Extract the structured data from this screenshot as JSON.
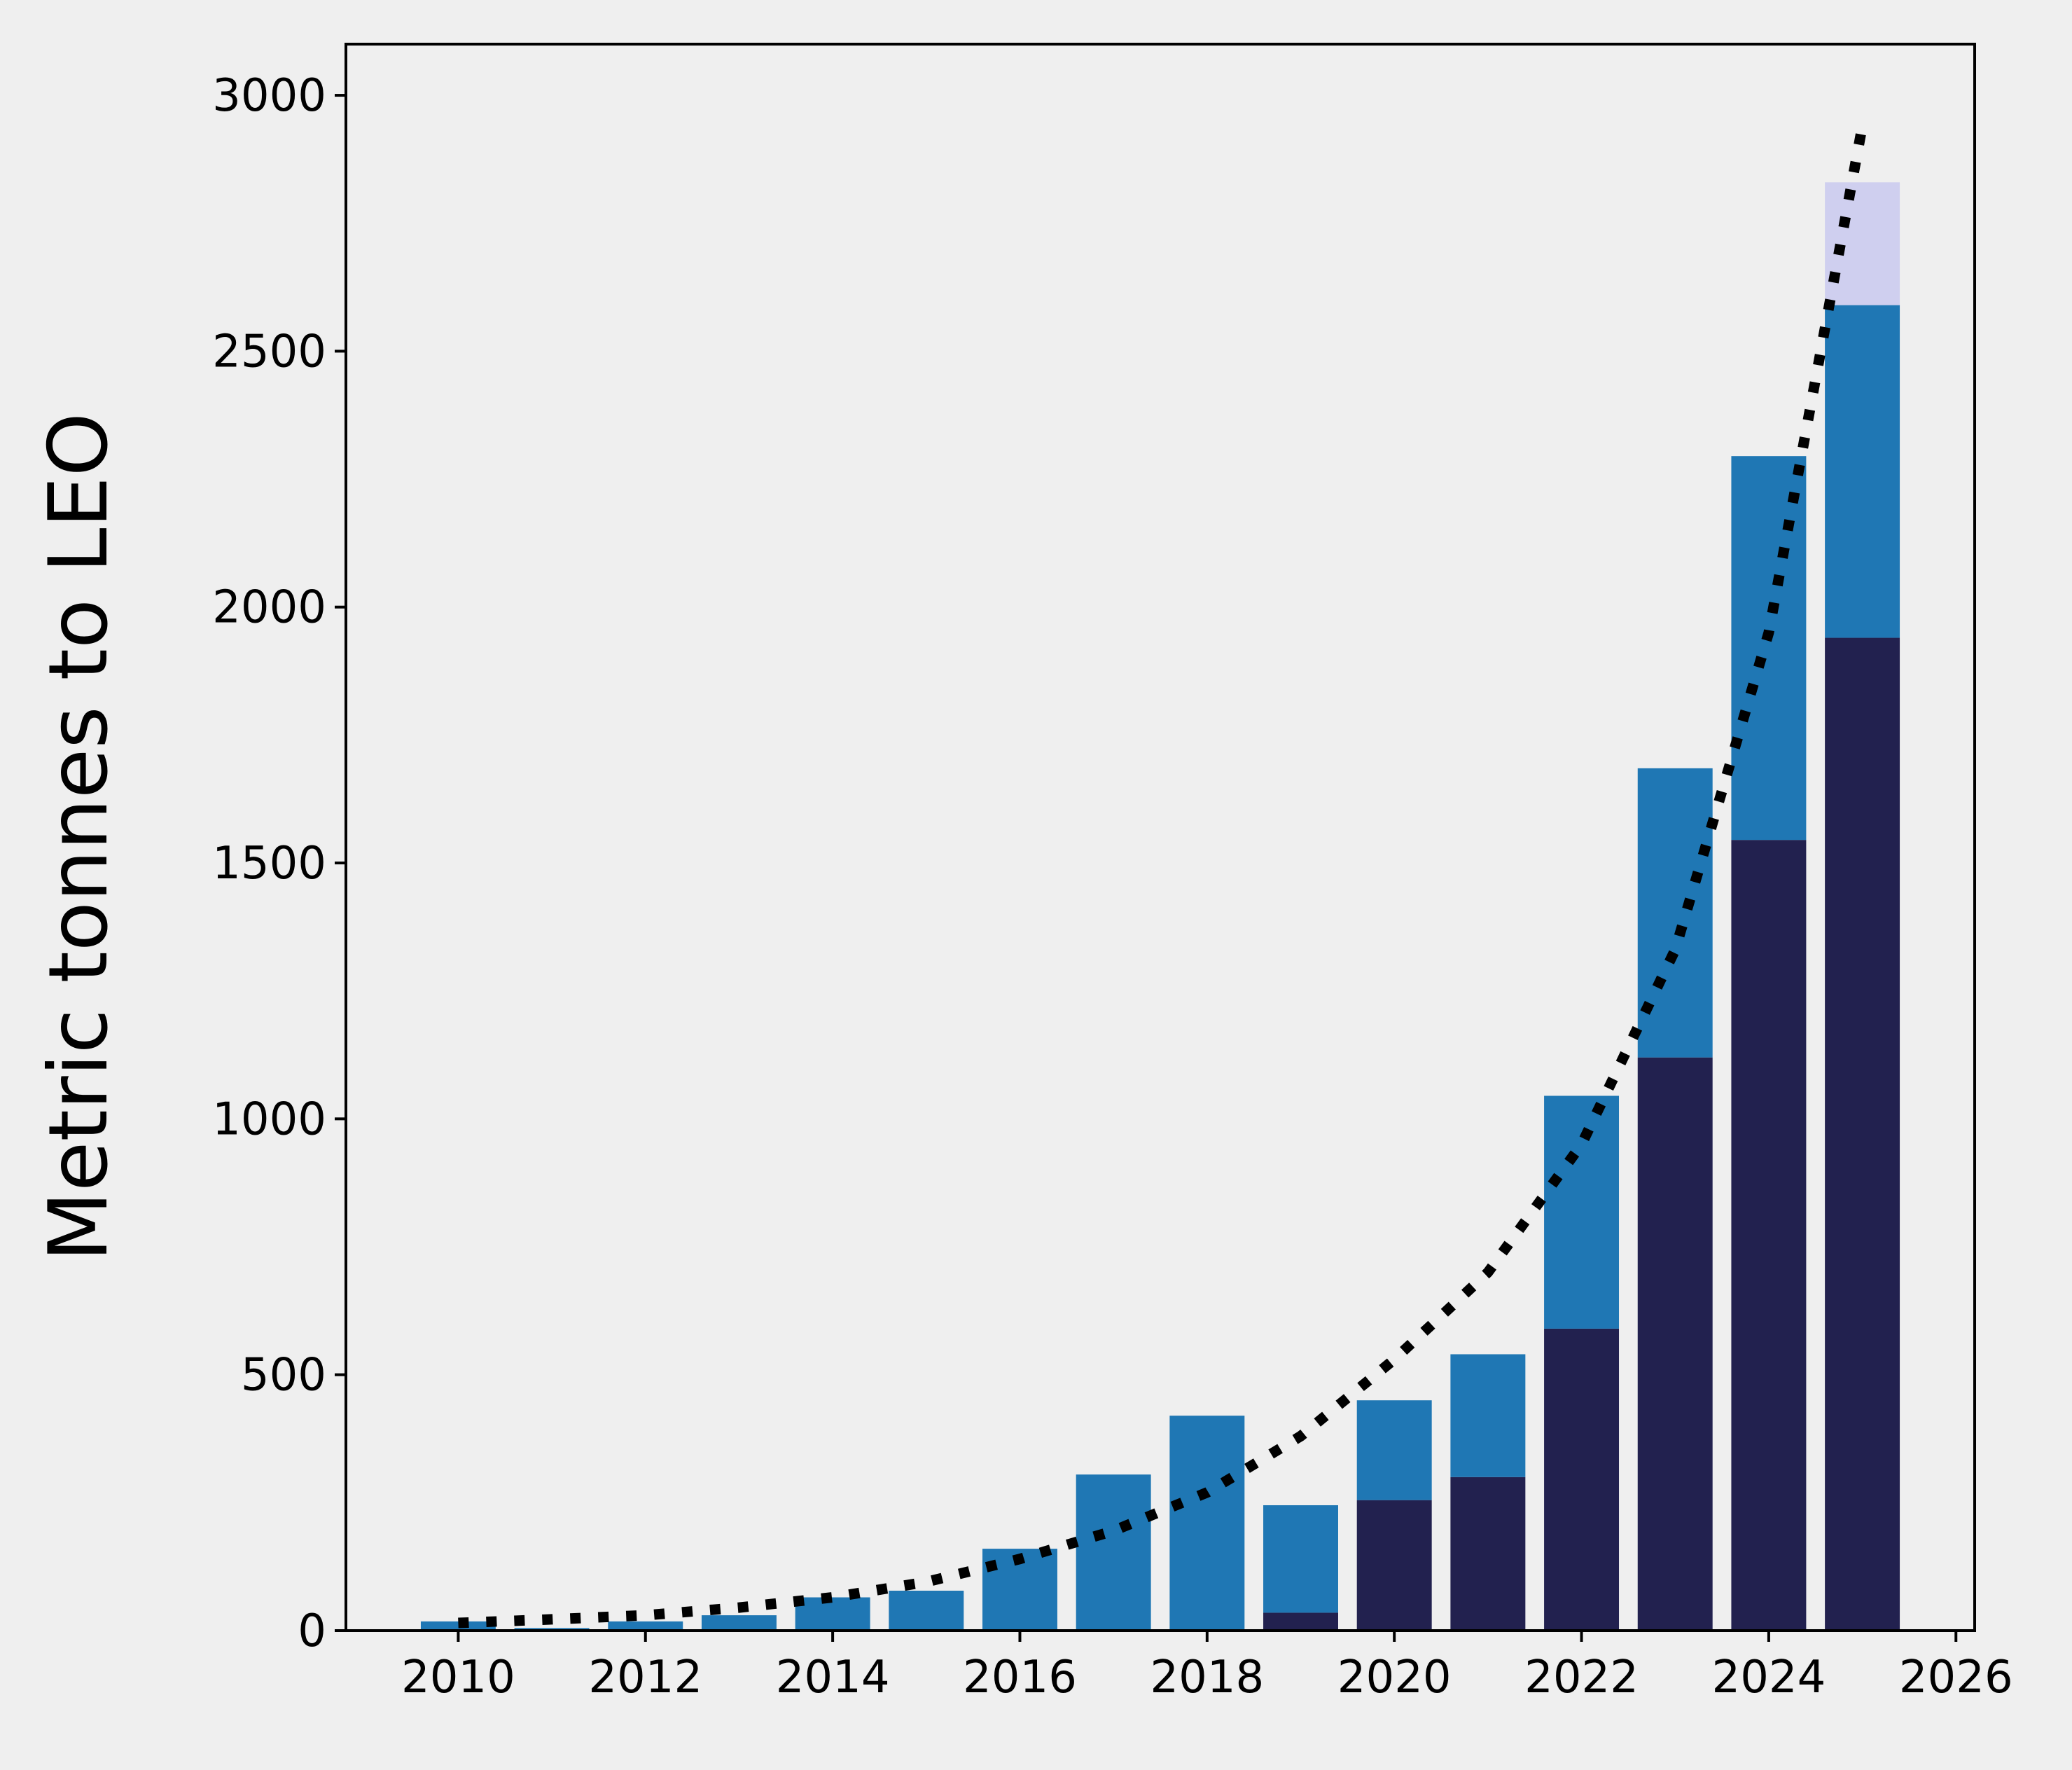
{
  "chart_data": {
    "type": "bar",
    "stacked": true,
    "title": "",
    "xlabel": "",
    "ylabel": "Metric tonnes to LEO",
    "xlim": [
      2008.8,
      2026.2
    ],
    "ylim": [
      0,
      3100
    ],
    "xticks": [
      2010,
      2012,
      2014,
      2016,
      2018,
      2020,
      2022,
      2024,
      2026
    ],
    "yticks": [
      0,
      500,
      1000,
      1500,
      2000,
      2500,
      3000
    ],
    "grid": false,
    "legend": "none",
    "categories": [
      2010,
      2011,
      2012,
      2013,
      2014,
      2015,
      2016,
      2017,
      2018,
      2019,
      2020,
      2021,
      2022,
      2023,
      2024,
      2025
    ],
    "series": [
      {
        "color": "#22214f",
        "values": [
          0,
          0,
          0,
          0,
          0,
          0,
          0,
          0,
          0,
          35,
          255,
          300,
          590,
          1120,
          1545,
          1940
        ]
      },
      {
        "color": "#1f77b4",
        "values": [
          18,
          5,
          18,
          30,
          65,
          78,
          160,
          305,
          420,
          210,
          195,
          240,
          455,
          565,
          750,
          650
        ]
      },
      {
        "color": "#cfcfef",
        "values": [
          0,
          0,
          0,
          0,
          0,
          0,
          0,
          0,
          0,
          0,
          0,
          0,
          0,
          0,
          0,
          240
        ]
      }
    ],
    "trend": {
      "style": "dotted",
      "color": "#000000",
      "x": [
        2010,
        2011,
        2012,
        2013,
        2014,
        2015,
        2016,
        2017,
        2018,
        2019,
        2020,
        2021,
        2022,
        2023,
        2024,
        2025
      ],
      "y": [
        15,
        22,
        30,
        45,
        65,
        95,
        140,
        195,
        270,
        380,
        530,
        700,
        950,
        1330,
        1950,
        2940
      ]
    }
  }
}
